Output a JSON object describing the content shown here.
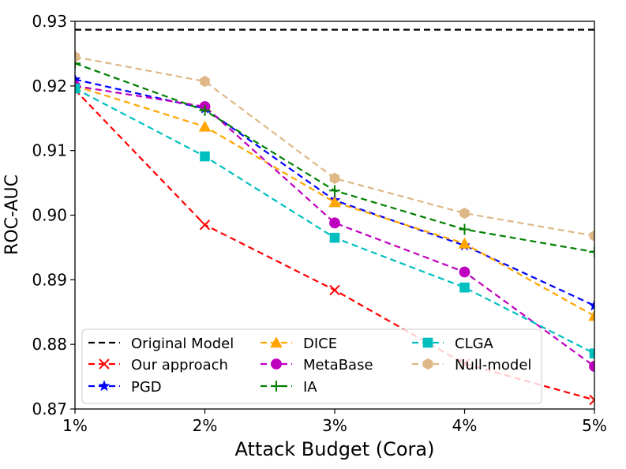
{
  "chart_data": {
    "type": "line",
    "xlabel": "Attack Budget (Cora)",
    "ylabel": "ROC-AUC",
    "categories": [
      "1%",
      "2%",
      "3%",
      "4%",
      "5%"
    ],
    "ylim": [
      0.87,
      0.93
    ],
    "yticks": [
      "0.87",
      "0.88",
      "0.89",
      "0.90",
      "0.91",
      "0.92",
      "0.93"
    ],
    "legend_position": "lower-left",
    "series": [
      {
        "name": "Original Model",
        "values": [
          0.9287,
          0.9287,
          0.9287,
          0.9287,
          0.9287
        ],
        "color": "#000000",
        "marker": "none",
        "full_width": true
      },
      {
        "name": "Our approach",
        "values": [
          0.9194,
          0.8985,
          0.8884,
          0.877,
          0.8714
        ],
        "color": "#ff0000",
        "marker": "x"
      },
      {
        "name": "PGD",
        "values": [
          0.921,
          0.9165,
          0.9023,
          0.8953,
          0.886
        ],
        "color": "#0000ff",
        "marker": "star"
      },
      {
        "name": "DICE",
        "values": [
          0.92,
          0.9137,
          0.902,
          0.8956,
          0.8844
        ],
        "color": "#ffa500",
        "marker": "triangle"
      },
      {
        "name": "MetaBase",
        "values": [
          0.92,
          0.9168,
          0.8988,
          0.8912,
          0.8766
        ],
        "color": "#bf00bf",
        "marker": "circle"
      },
      {
        "name": "IA",
        "values": [
          0.9235,
          0.9162,
          0.9038,
          0.8978,
          0.8943
        ],
        "color": "#008000",
        "marker": "plus"
      },
      {
        "name": "CLGA",
        "values": [
          0.9196,
          0.9091,
          0.8965,
          0.8888,
          0.8786
        ],
        "color": "#00bfbf",
        "marker": "square"
      },
      {
        "name": "Null-model",
        "values": [
          0.9245,
          0.9207,
          0.9057,
          0.9003,
          0.8968
        ],
        "color": "#deb887",
        "marker": "hexagon"
      }
    ]
  }
}
